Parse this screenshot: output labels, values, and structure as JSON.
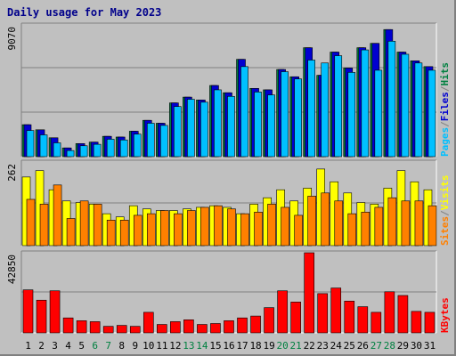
{
  "chart_data": {
    "type": "bar",
    "title": "Daily usage for May 2023",
    "categories": [
      "1",
      "2",
      "3",
      "4",
      "5",
      "6",
      "7",
      "8",
      "9",
      "10",
      "11",
      "12",
      "13",
      "14",
      "15",
      "16",
      "17",
      "18",
      "19",
      "20",
      "21",
      "22",
      "23",
      "24",
      "25",
      "26",
      "27",
      "28",
      "29",
      "30",
      "31"
    ],
    "weekend_days": [
      "6",
      "7",
      "13",
      "14",
      "20",
      "21",
      "27",
      "28"
    ],
    "colors": {
      "hits": "#008040",
      "files": "#0000d0",
      "pages": "#00c0ff",
      "visits": "#ffff00",
      "sites": "#ff8000",
      "kbytes": "#ff0000",
      "weekday_tick": "#000000",
      "weekend_tick": "#008040",
      "title": "#00008b",
      "gridline": "#808080"
    },
    "panels": [
      {
        "id": "hits-files-pages",
        "ymax_label": "9070",
        "ylim": [
          0,
          9070
        ],
        "legend": [
          {
            "label": "Pages",
            "color": "#00c0ff"
          },
          {
            "label": "/",
            "color": "#808080"
          },
          {
            "label": "Files",
            "color": "#0000d0"
          },
          {
            "label": "/",
            "color": "#808080"
          },
          {
            "label": "Hits",
            "color": "#008040"
          }
        ],
        "series": [
          {
            "name": "Hits",
            "color": "#008040",
            "values": [
              2200,
              1850,
              1300,
              600,
              900,
              1000,
              1400,
              1350,
              1750,
              2500,
              2300,
              3700,
              4100,
              3900,
              4900,
              4400,
              6700,
              4700,
              4600,
              6000,
              5500,
              7500,
              5600,
              7200,
              6100,
              7500,
              7800,
              8750,
              7200,
              6600,
              6200
            ]
          },
          {
            "name": "Files",
            "color": "#0000d0",
            "values": [
              2200,
              1850,
              1300,
              600,
              900,
              1000,
              1400,
              1350,
              1750,
              2500,
              2300,
              3700,
              4100,
              3900,
              4900,
              4400,
              6700,
              4700,
              4600,
              6000,
              5500,
              7500,
              5600,
              7200,
              6100,
              7500,
              7800,
              8750,
              7200,
              6600,
              6200
            ]
          },
          {
            "name": "Pages",
            "color": "#00c0ff",
            "values": [
              1800,
              1500,
              950,
              420,
              750,
              850,
              1200,
              1150,
              1550,
              2300,
              2150,
              3450,
              3950,
              3750,
              4600,
              4150,
              6200,
              4450,
              4250,
              5850,
              5350,
              6650,
              6450,
              6950,
              5800,
              7350,
              5950,
              7950,
              7050,
              6450,
              5950
            ]
          }
        ]
      },
      {
        "id": "visits-sites",
        "ymax_label": "262",
        "ylim": [
          0,
          262
        ],
        "legend": [
          {
            "label": "Sites",
            "color": "#ff8000"
          },
          {
            "label": "/",
            "color": "#808080"
          },
          {
            "label": "Visits",
            "color": "#ffff00"
          }
        ],
        "series": [
          {
            "name": "Visits",
            "color": "#ffff00",
            "values": [
              215,
              235,
              175,
              140,
              135,
              130,
              100,
              90,
              125,
              115,
              110,
              110,
              115,
              120,
              125,
              120,
              100,
              130,
              150,
              175,
              140,
              180,
              240,
              200,
              165,
              135,
              130,
              180,
              235,
              200,
              175
            ]
          },
          {
            "name": "Sites",
            "color": "#ff8000",
            "values": [
              145,
              130,
              190,
              85,
              140,
              130,
              80,
              80,
              95,
              100,
              110,
              100,
              110,
              120,
              125,
              115,
              100,
              105,
              130,
              120,
              95,
              155,
              165,
              140,
              100,
              105,
              120,
              150,
              140,
              140,
              125
            ]
          }
        ]
      },
      {
        "id": "kbytes",
        "ymax_label": "42850",
        "ylim": [
          0,
          42850
        ],
        "legend": [
          {
            "label": "KBytes",
            "color": "#ff0000"
          }
        ],
        "series": [
          {
            "name": "KBytes",
            "color": "#ff0000",
            "values": [
              23000,
              17500,
              22500,
              8000,
              6500,
              6000,
              3500,
              4000,
              3500,
              11000,
              4500,
              6000,
              7000,
              4500,
              5000,
              6500,
              8000,
              9000,
              13500,
              22500,
              16500,
              42850,
              21000,
              24000,
              17000,
              14000,
              11000,
              22000,
              20000,
              11500,
              11000
            ]
          }
        ]
      }
    ]
  }
}
